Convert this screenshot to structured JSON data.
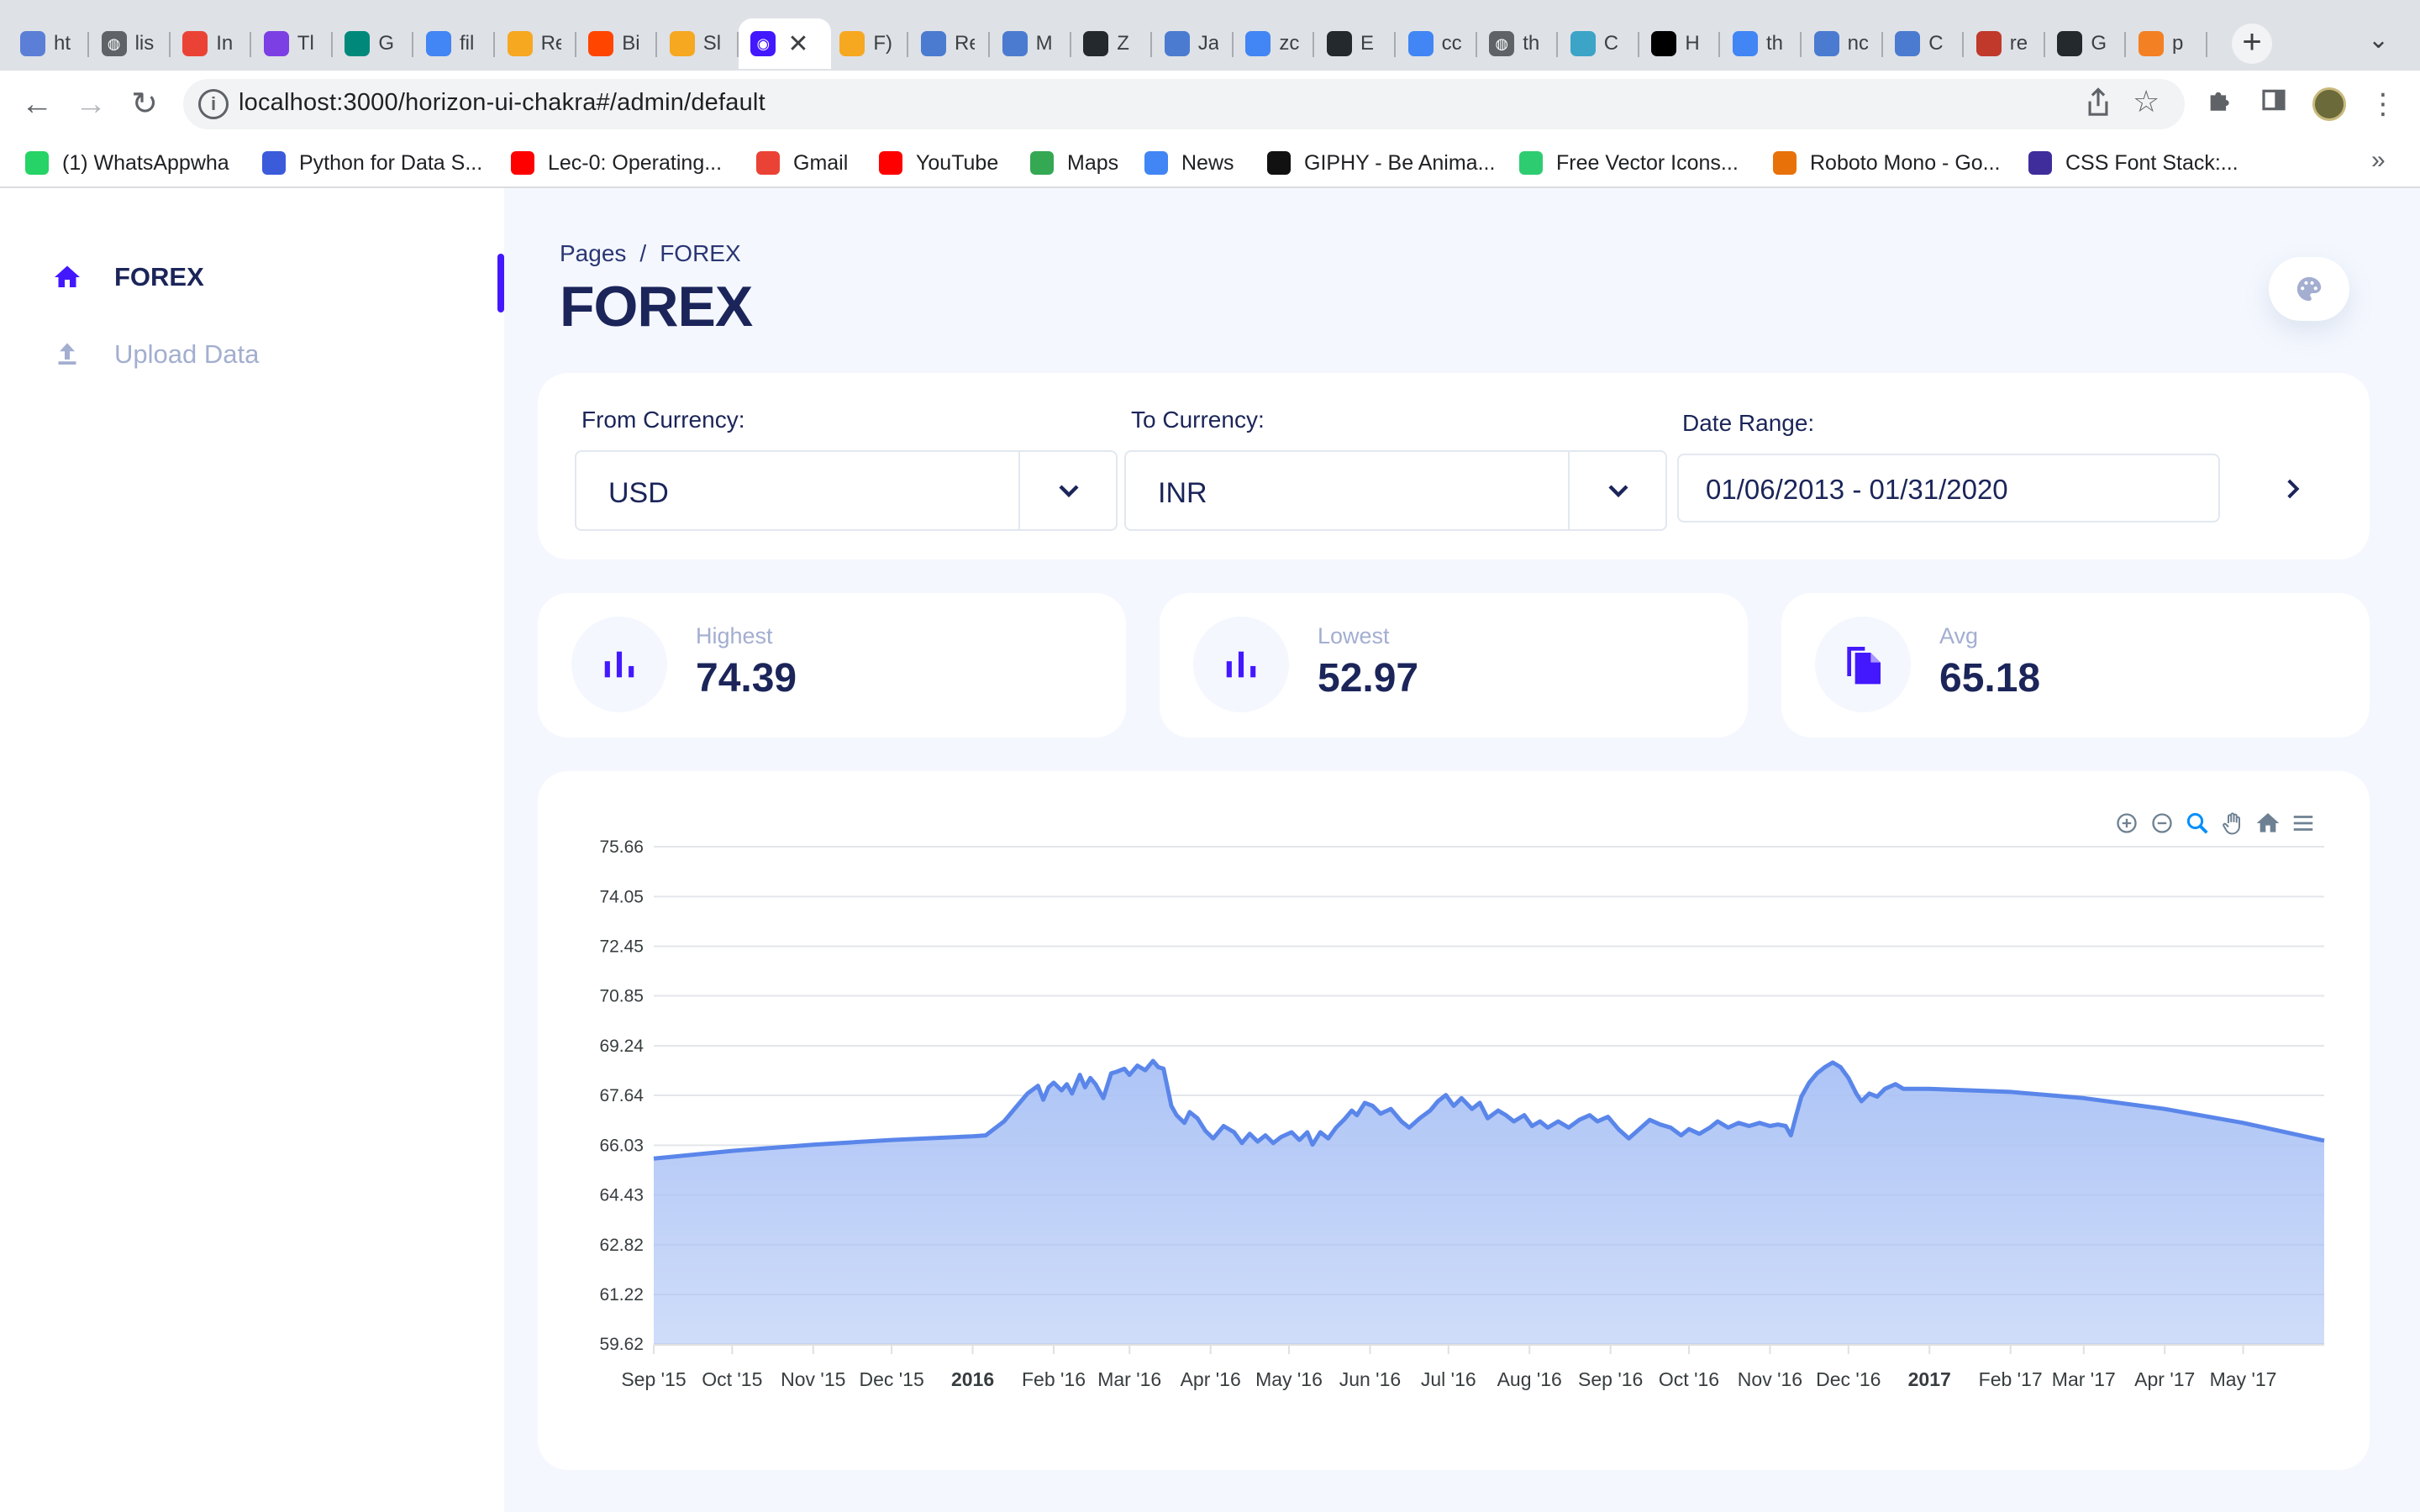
{
  "browser": {
    "tabs": [
      {
        "label": "ht",
        "icon": "doc-icon",
        "color": "#5b7fd6"
      },
      {
        "label": "lis",
        "icon": "globe-icon",
        "color": "#5f6368"
      },
      {
        "label": "In",
        "icon": "gmail-icon",
        "color": "#ea4335"
      },
      {
        "label": "Tl",
        "icon": "u-icon",
        "color": "#7b3fe4"
      },
      {
        "label": "G",
        "icon": "meet-icon",
        "color": "#00897b"
      },
      {
        "label": "fil",
        "icon": "google-icon",
        "color": "#4285f4"
      },
      {
        "label": "Re",
        "icon": "firebase-icon",
        "color": "#f6a821"
      },
      {
        "label": "Bi",
        "icon": "reddit-icon",
        "color": "#ff4500"
      },
      {
        "label": "Sl",
        "icon": "firebase-icon",
        "color": "#f6a821"
      },
      {
        "label": "",
        "icon": "app-icon",
        "color": "#4318ff",
        "active": true
      },
      {
        "label": "F)",
        "icon": "firebase-icon",
        "color": "#f6a821"
      },
      {
        "label": "Re",
        "icon": "triangle-icon",
        "color": "#4a7bd0"
      },
      {
        "label": "M",
        "icon": "triangle-icon",
        "color": "#4a7bd0"
      },
      {
        "label": "Z",
        "icon": "github-icon",
        "color": "#24292e"
      },
      {
        "label": "Ja",
        "icon": "triangle-icon",
        "color": "#4a7bd0"
      },
      {
        "label": "zc",
        "icon": "google-icon",
        "color": "#4285f4"
      },
      {
        "label": "E",
        "icon": "github-icon",
        "color": "#24292e"
      },
      {
        "label": "cc",
        "icon": "google-icon",
        "color": "#4285f4"
      },
      {
        "label": "th",
        "icon": "globe-icon",
        "color": "#5f6368"
      },
      {
        "label": "C",
        "icon": "bolt-icon",
        "color": "#3ba4c7"
      },
      {
        "label": "H",
        "icon": "medium-icon",
        "color": "#000000"
      },
      {
        "label": "th",
        "icon": "google-icon",
        "color": "#4285f4"
      },
      {
        "label": "nc",
        "icon": "triangle-icon",
        "color": "#4a7bd0"
      },
      {
        "label": "C",
        "icon": "triangle-icon",
        "color": "#4a7bd0"
      },
      {
        "label": "re",
        "icon": "n-icon",
        "color": "#c0392b"
      },
      {
        "label": "G",
        "icon": "github-icon",
        "color": "#24292e"
      },
      {
        "label": "p",
        "icon": "stack-icon",
        "color": "#f48024"
      }
    ],
    "url": "localhost:3000/horizon-ui-chakra#/admin/default",
    "bookmarks": [
      {
        "label": "(1) WhatsAppwha",
        "icon": "whatsapp-icon",
        "color": "#25d366"
      },
      {
        "label": "Python for Data S...",
        "icon": "s-icon",
        "color": "#3b5bdb"
      },
      {
        "label": "Lec-0: Operating...",
        "icon": "youtube-icon",
        "color": "#ff0000"
      },
      {
        "label": "Gmail",
        "icon": "gmail-icon",
        "color": "#ea4335"
      },
      {
        "label": "YouTube",
        "icon": "youtube-icon",
        "color": "#ff0000"
      },
      {
        "label": "Maps",
        "icon": "maps-icon",
        "color": "#34a853"
      },
      {
        "label": "News",
        "icon": "news-icon",
        "color": "#4285f4"
      },
      {
        "label": "GIPHY - Be Anima...",
        "icon": "giphy-icon",
        "color": "#111111"
      },
      {
        "label": "Free Vector Icons...",
        "icon": "vector-icon",
        "color": "#2ecc71"
      },
      {
        "label": "Roboto Mono - Go...",
        "icon": "fonts-icon",
        "color": "#e8710a"
      },
      {
        "label": "CSS Font Stack:...",
        "icon": "cssfont-icon",
        "color": "#3f2d9c"
      }
    ]
  },
  "sidebar": {
    "items": [
      {
        "label": "FOREX",
        "icon": "home-icon",
        "active": true
      },
      {
        "label": "Upload Data",
        "icon": "upload-icon",
        "active": false
      }
    ]
  },
  "header": {
    "breadcrumb_root": "Pages",
    "breadcrumb_sep": "/",
    "breadcrumb_current": "FOREX",
    "title": "FOREX"
  },
  "filters": {
    "from_label": "From Currency:",
    "from_value": "USD",
    "to_label": "To Currency:",
    "to_value": "INR",
    "date_label": "Date Range:",
    "date_value": "01/06/2013 - 01/31/2020"
  },
  "stats": [
    {
      "title": "Highest",
      "value": "74.39",
      "icon": "bar-chart-icon"
    },
    {
      "title": "Lowest",
      "value": "52.97",
      "icon": "bar-chart-icon"
    },
    {
      "title": "Avg",
      "value": "65.18",
      "icon": "copy-document-icon"
    }
  ],
  "colors": {
    "accent": "#4318ff",
    "series_line": "#5a86ea",
    "series_fill": "#a9c1f5",
    "page_bg": "#f4f7fe",
    "muted_text": "#a3aed0",
    "title_text": "#1b2559"
  },
  "chart_data": {
    "type": "area",
    "title": "",
    "xlabel": "",
    "ylabel": "",
    "ylim": [
      59.62,
      75.66
    ],
    "yticks": [
      "75.66",
      "74.05",
      "72.45",
      "70.85",
      "69.24",
      "67.64",
      "66.03",
      "64.43",
      "62.82",
      "61.22",
      "59.62"
    ],
    "xlim": [
      "2015-09-01",
      "2017-06-01"
    ],
    "xticks": [
      {
        "label": "Sep '15",
        "date": "2015-09-01",
        "bold": false
      },
      {
        "label": "Oct '15",
        "date": "2015-10-01",
        "bold": false
      },
      {
        "label": "Nov '15",
        "date": "2015-11-01",
        "bold": false
      },
      {
        "label": "Dec '15",
        "date": "2015-12-01",
        "bold": false
      },
      {
        "label": "2016",
        "date": "2016-01-01",
        "bold": true
      },
      {
        "label": "Feb '16",
        "date": "2016-02-01",
        "bold": false
      },
      {
        "label": "Mar '16",
        "date": "2016-03-01",
        "bold": false
      },
      {
        "label": "Apr '16",
        "date": "2016-04-01",
        "bold": false
      },
      {
        "label": "May '16",
        "date": "2016-05-01",
        "bold": false
      },
      {
        "label": "Jun '16",
        "date": "2016-06-01",
        "bold": false
      },
      {
        "label": "Jul '16",
        "date": "2016-07-01",
        "bold": false
      },
      {
        "label": "Aug '16",
        "date": "2016-08-01",
        "bold": false
      },
      {
        "label": "Sep '16",
        "date": "2016-09-01",
        "bold": false
      },
      {
        "label": "Oct '16",
        "date": "2016-10-01",
        "bold": false
      },
      {
        "label": "Nov '16",
        "date": "2016-11-01",
        "bold": false
      },
      {
        "label": "Dec '16",
        "date": "2016-12-01",
        "bold": false
      },
      {
        "label": "2017",
        "date": "2017-01-01",
        "bold": true
      },
      {
        "label": "Feb '17",
        "date": "2017-02-01",
        "bold": false
      },
      {
        "label": "Mar '17",
        "date": "2017-03-01",
        "bold": false
      },
      {
        "label": "Apr '17",
        "date": "2017-04-01",
        "bold": false
      },
      {
        "label": "May '17",
        "date": "2017-05-01",
        "bold": false
      }
    ],
    "grid": true,
    "legend": "none",
    "series": [
      {
        "name": "",
        "points": [
          [
            "2015-09-01",
            65.6
          ],
          [
            "2015-10-01",
            65.85
          ],
          [
            "2015-11-01",
            66.05
          ],
          [
            "2015-12-01",
            66.2
          ],
          [
            "2016-01-01",
            66.32
          ],
          [
            "2016-01-06",
            66.35
          ],
          [
            "2016-01-13",
            66.8
          ],
          [
            "2016-01-18",
            67.3
          ],
          [
            "2016-01-22",
            67.7
          ],
          [
            "2016-01-26",
            67.95
          ],
          [
            "2016-01-28",
            67.5
          ],
          [
            "2016-01-30",
            67.9
          ],
          [
            "2016-02-01",
            68.05
          ],
          [
            "2016-02-04",
            67.8
          ],
          [
            "2016-02-06",
            68.0
          ],
          [
            "2016-02-08",
            67.7
          ],
          [
            "2016-02-11",
            68.3
          ],
          [
            "2016-02-13",
            67.9
          ],
          [
            "2016-02-15",
            68.2
          ],
          [
            "2016-02-17",
            68.0
          ],
          [
            "2016-02-20",
            67.55
          ],
          [
            "2016-02-23",
            68.35
          ],
          [
            "2016-02-25",
            68.4
          ],
          [
            "2016-02-28",
            68.5
          ],
          [
            "2016-03-01",
            68.3
          ],
          [
            "2016-03-04",
            68.6
          ],
          [
            "2016-03-07",
            68.45
          ],
          [
            "2016-03-10",
            68.75
          ],
          [
            "2016-03-12",
            68.55
          ],
          [
            "2016-03-14",
            68.5
          ],
          [
            "2016-03-17",
            67.3
          ],
          [
            "2016-03-19",
            67.0
          ],
          [
            "2016-03-22",
            66.75
          ],
          [
            "2016-03-24",
            67.1
          ],
          [
            "2016-03-27",
            66.9
          ],
          [
            "2016-03-30",
            66.5
          ],
          [
            "2016-04-02",
            66.25
          ],
          [
            "2016-04-06",
            66.65
          ],
          [
            "2016-04-10",
            66.45
          ],
          [
            "2016-04-13",
            66.1
          ],
          [
            "2016-04-16",
            66.4
          ],
          [
            "2016-04-19",
            66.15
          ],
          [
            "2016-04-22",
            66.35
          ],
          [
            "2016-04-25",
            66.1
          ],
          [
            "2016-04-28",
            66.3
          ],
          [
            "2016-05-02",
            66.45
          ],
          [
            "2016-05-05",
            66.2
          ],
          [
            "2016-05-08",
            66.45
          ],
          [
            "2016-05-10",
            66.05
          ],
          [
            "2016-05-13",
            66.45
          ],
          [
            "2016-05-16",
            66.25
          ],
          [
            "2016-05-19",
            66.6
          ],
          [
            "2016-05-22",
            66.85
          ],
          [
            "2016-05-25",
            67.15
          ],
          [
            "2016-05-27",
            67.0
          ],
          [
            "2016-05-30",
            67.4
          ],
          [
            "2016-06-02",
            67.3
          ],
          [
            "2016-06-05",
            67.05
          ],
          [
            "2016-06-09",
            67.2
          ],
          [
            "2016-06-13",
            66.8
          ],
          [
            "2016-06-16",
            66.6
          ],
          [
            "2016-06-20",
            66.9
          ],
          [
            "2016-06-24",
            67.15
          ],
          [
            "2016-06-27",
            67.45
          ],
          [
            "2016-06-30",
            67.65
          ],
          [
            "2016-07-03",
            67.3
          ],
          [
            "2016-07-06",
            67.55
          ],
          [
            "2016-07-10",
            67.2
          ],
          [
            "2016-07-13",
            67.4
          ],
          [
            "2016-07-16",
            66.9
          ],
          [
            "2016-07-20",
            67.15
          ],
          [
            "2016-07-23",
            67.0
          ],
          [
            "2016-07-26",
            66.8
          ],
          [
            "2016-07-30",
            67.0
          ],
          [
            "2016-08-02",
            66.65
          ],
          [
            "2016-08-05",
            66.8
          ],
          [
            "2016-08-08",
            66.6
          ],
          [
            "2016-08-12",
            66.8
          ],
          [
            "2016-08-16",
            66.6
          ],
          [
            "2016-08-20",
            66.85
          ],
          [
            "2016-08-24",
            67.0
          ],
          [
            "2016-08-27",
            66.8
          ],
          [
            "2016-08-31",
            66.95
          ],
          [
            "2016-09-04",
            66.55
          ],
          [
            "2016-09-08",
            66.25
          ],
          [
            "2016-09-12",
            66.55
          ],
          [
            "2016-09-16",
            66.85
          ],
          [
            "2016-09-20",
            66.7
          ],
          [
            "2016-09-24",
            66.6
          ],
          [
            "2016-09-28",
            66.35
          ],
          [
            "2016-10-01",
            66.55
          ],
          [
            "2016-10-05",
            66.4
          ],
          [
            "2016-10-09",
            66.6
          ],
          [
            "2016-10-12",
            66.8
          ],
          [
            "2016-10-16",
            66.6
          ],
          [
            "2016-10-20",
            66.75
          ],
          [
            "2016-10-24",
            66.65
          ],
          [
            "2016-10-28",
            66.75
          ],
          [
            "2016-11-01",
            66.65
          ],
          [
            "2016-11-04",
            66.7
          ],
          [
            "2016-11-07",
            66.65
          ],
          [
            "2016-11-09",
            66.35
          ],
          [
            "2016-11-11",
            67.0
          ],
          [
            "2016-11-13",
            67.6
          ],
          [
            "2016-11-16",
            68.05
          ],
          [
            "2016-11-19",
            68.35
          ],
          [
            "2016-11-22",
            68.55
          ],
          [
            "2016-11-25",
            68.7
          ],
          [
            "2016-11-28",
            68.55
          ],
          [
            "2016-12-01",
            68.2
          ],
          [
            "2016-12-04",
            67.7
          ],
          [
            "2016-12-06",
            67.45
          ],
          [
            "2016-12-09",
            67.7
          ],
          [
            "2016-12-12",
            67.6
          ],
          [
            "2016-12-15",
            67.85
          ],
          [
            "2016-12-19",
            68.0
          ],
          [
            "2016-12-22",
            67.85
          ],
          [
            "2017-01-01",
            67.85
          ],
          [
            "2017-02-01",
            67.75
          ],
          [
            "2017-03-01",
            67.55
          ],
          [
            "2017-04-01",
            67.2
          ],
          [
            "2017-05-01",
            66.75
          ],
          [
            "2017-06-01",
            66.18
          ]
        ]
      }
    ]
  }
}
